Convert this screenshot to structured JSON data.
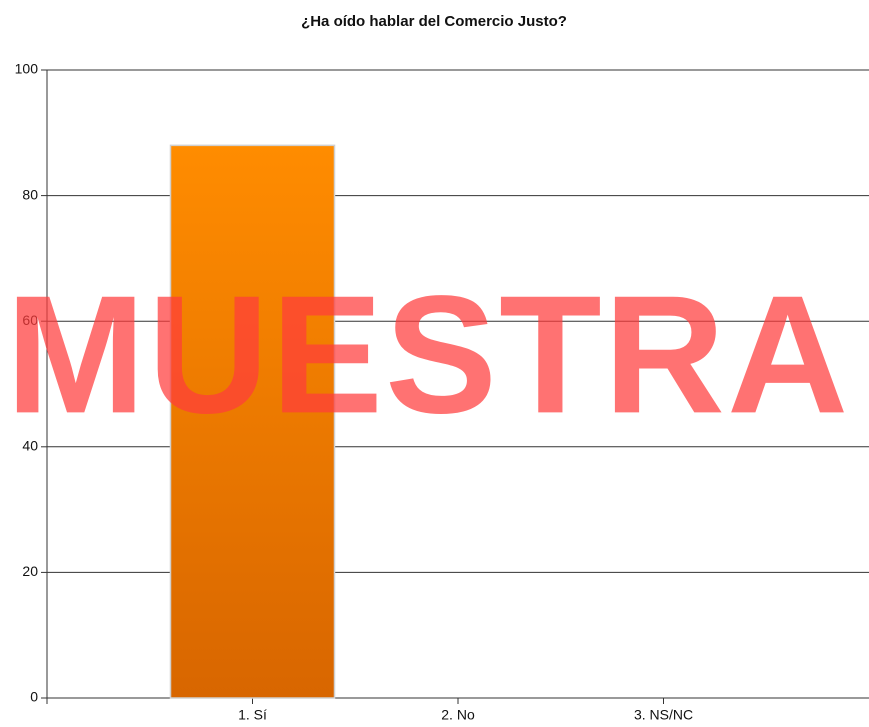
{
  "chart_data": {
    "type": "bar",
    "title": "¿Ha oído hablar del Comercio Justo?",
    "categories": [
      "1. Sí",
      "2. No",
      "3. NS/NC"
    ],
    "values": [
      88,
      0,
      0
    ],
    "color": "#f08000",
    "ylim": [
      0,
      100
    ],
    "yticks": [
      0,
      20,
      40,
      60,
      80,
      100
    ],
    "grid": true,
    "annotation": "MUESTRA"
  }
}
